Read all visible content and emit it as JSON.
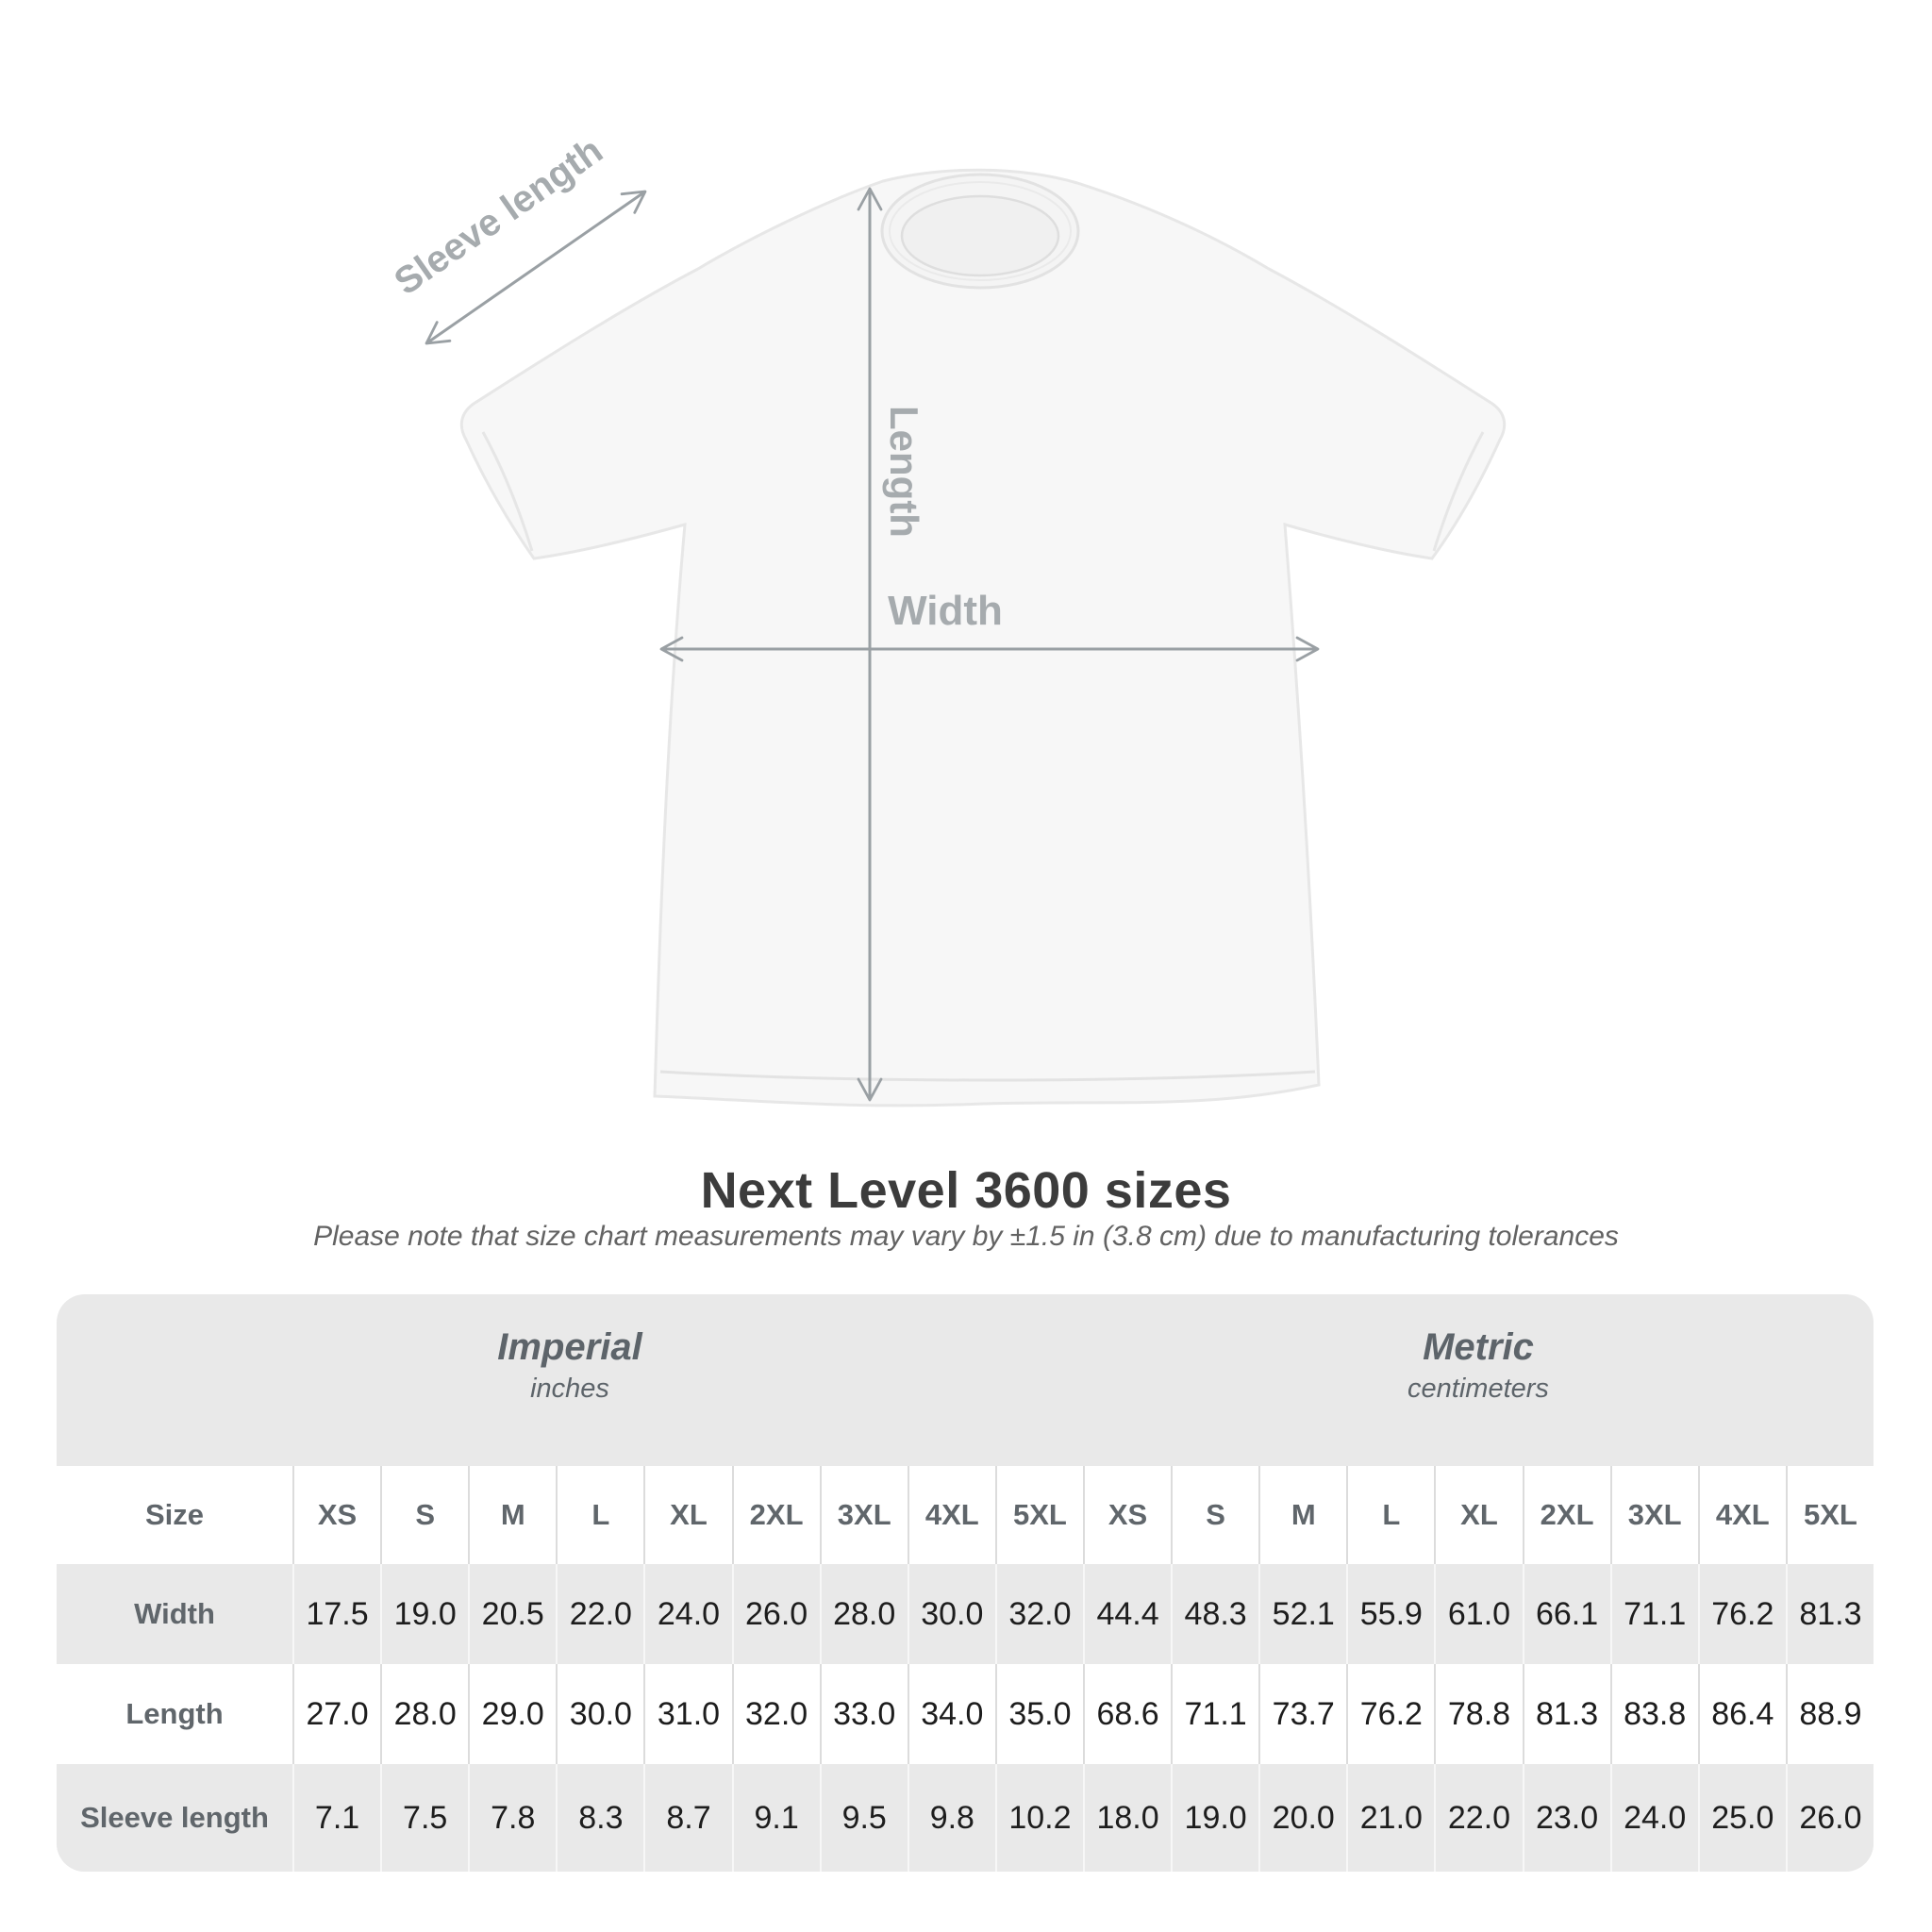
{
  "title": "Next Level 3600 sizes",
  "subtitle": "Please note that size chart measurements may vary by ±1.5 in (3.8 cm) due to manufacturing tolerances",
  "diagram": {
    "labels": {
      "sleeve": "Sleeve length",
      "length": "Length",
      "width": "Width"
    },
    "arrow_color": "#9aa0a4",
    "label_color": "#a6abae",
    "shirt_fill": "#f7f7f7",
    "shirt_edge": "#e7e7e7"
  },
  "chart_data": {
    "type": "table",
    "title": "Next Level 3600 sizes",
    "note": "Please note that size chart measurements may vary by ±1.5 in (3.8 cm) due to manufacturing tolerances",
    "size_label": "Size",
    "column_groups": [
      {
        "label": "Imperial",
        "unit": "inches",
        "span": 10
      },
      {
        "label": "Metric",
        "unit": "centimeters",
        "span": 9
      }
    ],
    "sizes": [
      "XS",
      "S",
      "M",
      "L",
      "XL",
      "2XL",
      "3XL",
      "4XL",
      "5XL"
    ],
    "rows": [
      {
        "label": "Width",
        "imperial": [
          "17.5",
          "19.0",
          "20.5",
          "22.0",
          "24.0",
          "26.0",
          "28.0",
          "30.0",
          "32.0"
        ],
        "metric": [
          "44.4",
          "48.3",
          "52.1",
          "55.9",
          "61.0",
          "66.1",
          "71.1",
          "76.2",
          "81.3"
        ]
      },
      {
        "label": "Length",
        "imperial": [
          "27.0",
          "28.0",
          "29.0",
          "30.0",
          "31.0",
          "32.0",
          "33.0",
          "34.0",
          "35.0"
        ],
        "metric": [
          "68.6",
          "71.1",
          "73.7",
          "76.2",
          "78.8",
          "81.3",
          "83.8",
          "86.4",
          "88.9"
        ]
      },
      {
        "label": "Sleeve length",
        "imperial": [
          "7.1",
          "7.5",
          "7.8",
          "8.3",
          "8.7",
          "9.1",
          "9.5",
          "9.8",
          "10.2"
        ],
        "metric": [
          "18.0",
          "19.0",
          "20.0",
          "21.0",
          "22.0",
          "23.0",
          "24.0",
          "25.0",
          "26.0"
        ]
      }
    ]
  }
}
